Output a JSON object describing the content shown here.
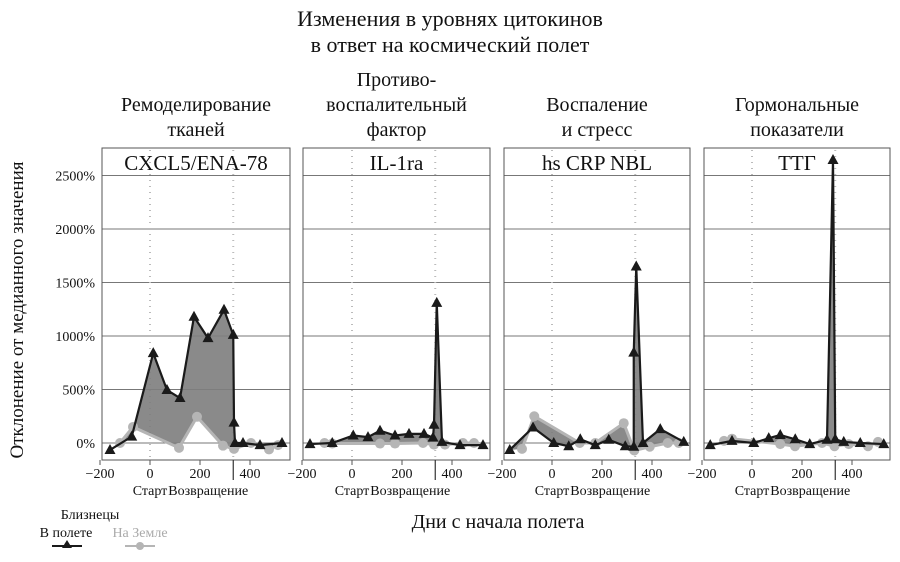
{
  "chart_data": [
    {
      "type": "area",
      "title": "Изменения в уровнях цитокинов в ответ на космический полет",
      "title_lines": [
        "Изменения в уровнях цитокинов",
        "в ответ на космический полет"
      ],
      "ylabel": "Отклонение от медианного значения",
      "xlabel": "Дни с начала полета",
      "yticks": [
        "0%",
        "500%",
        "1000%",
        "1500%",
        "2000%",
        "2500%"
      ],
      "ytick_values": [
        0,
        500,
        1000,
        1500,
        2000,
        2500
      ],
      "xticks": [
        "−200",
        "0",
        "200",
        "400"
      ],
      "xtick_values": [
        -200,
        0,
        200,
        400
      ],
      "xlim": [
        -210,
        550
      ],
      "ylim": [
        -150,
        2700
      ],
      "grid": true,
      "markers": {
        "start_label": "Старт",
        "return_label": "Возвращение",
        "start_day": 0,
        "return_day": 333
      },
      "legend": {
        "title": "Близнецы",
        "placement": "bottom-left",
        "entries": [
          {
            "label": "В полете",
            "color": "#1a1a1a",
            "marker": "triangle"
          },
          {
            "label": "На Земле",
            "color": "#b5b5b5",
            "marker": "circle"
          }
        ]
      },
      "fill_color": "#7d7d7d",
      "panels": [
        {
          "category_lines": [
            "Ремоделирование",
            "тканей"
          ],
          "name": "CXCL5/ENA-78",
          "series": [
            {
              "name": "В полете",
              "x": [
                -160,
                -73,
                13,
                68,
                120,
                176,
                232,
                296,
                333,
                336,
                340,
                372,
                440,
                528
              ],
              "y": [
                -65,
                60,
                840,
                495,
                420,
                1180,
                980,
                1245,
                1010,
                190,
                0,
                0,
                -20,
                0
              ]
            },
            {
              "name": "На Земле",
              "x": [
                -120,
                -68,
                116,
                188,
                292,
                336,
                404,
                476,
                512
              ],
              "y": [
                0,
                150,
                -45,
                245,
                -25,
                -55,
                0,
                -60,
                -20
              ]
            }
          ]
        },
        {
          "category_lines": [
            "Противо-",
            "воспалительный",
            "фактор"
          ],
          "name": "IL-1ra",
          "series": [
            {
              "name": "В полете",
              "x": [
                -168,
                -79,
                5,
                64,
                112,
                172,
                228,
                288,
                324,
                328,
                339,
                360,
                432,
                524
              ],
              "y": [
                -10,
                0,
                70,
                55,
                115,
                70,
                85,
                85,
                50,
                170,
                1310,
                10,
                -20,
                -20
              ]
            },
            {
              "name": "На Земле",
              "x": [
                -110,
                -79,
                112,
                172,
                284,
                328,
                372,
                444,
                488
              ],
              "y": [
                0,
                -5,
                -5,
                -5,
                0,
                -15,
                -15,
                0,
                0
              ]
            }
          ]
        },
        {
          "category_lines": [
            "Воспаление",
            "и стресс"
          ],
          "name": "hs CRP NBL",
          "series": [
            {
              "name": "В полете",
              "x": [
                -169,
                -76,
                7,
                67,
                113,
                173,
                227,
                293,
                327,
                327,
                337,
                364,
                433,
                527
              ],
              "y": [
                -65,
                145,
                0,
                -30,
                35,
                -20,
                30,
                -30,
                -35,
                845,
                1650,
                0,
                130,
                10
              ]
            },
            {
              "name": "На Земле",
              "x": [
                -120,
                -71,
                111,
                173,
                287,
                329,
                391,
                463,
                507
              ],
              "y": [
                -55,
                250,
                0,
                0,
                185,
                -70,
                -35,
                0,
                0
              ]
            }
          ]
        },
        {
          "category_lines": [
            "Гормональные",
            "показатели"
          ],
          "name": "ТТГ",
          "series": [
            {
              "name": "В полете",
              "x": [
                -167,
                -80,
                7,
                67,
                113,
                173,
                231,
                300,
                324,
                333,
                367,
                433,
                527
              ],
              "y": [
                -20,
                20,
                0,
                45,
                75,
                35,
                -10,
                30,
                2645,
                35,
                10,
                0,
                -10
              ]
            },
            {
              "name": "На Земле",
              "x": [
                -112,
                -80,
                113,
                172,
                280,
                330,
                387,
                464,
                504
              ],
              "y": [
                20,
                40,
                -10,
                -30,
                0,
                -30,
                -10,
                -30,
                10
              ]
            }
          ]
        }
      ]
    }
  ]
}
